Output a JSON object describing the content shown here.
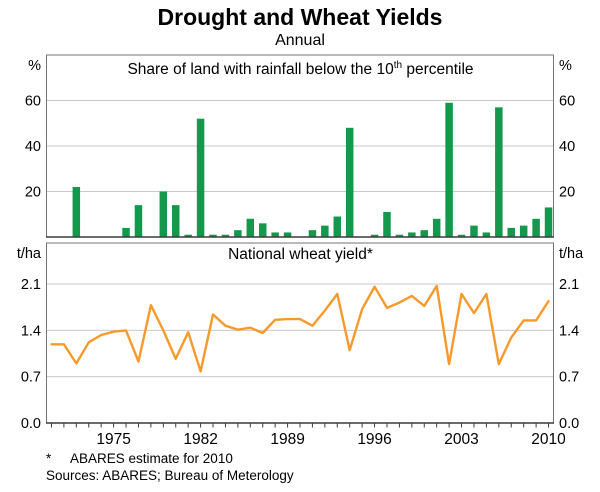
{
  "title": "Drought and Wheat Yields",
  "subtitle": "Annual",
  "footnote": {
    "marker": "*",
    "text": "ABARES estimate for 2010"
  },
  "sources": "Sources: ABARES; Bureau of Meterology",
  "colors": {
    "bar": "#14994C",
    "line": "#F8992C",
    "grid": "#C9C9C9",
    "frame": "#757575",
    "axis": "#3C3C3C",
    "text": "#000000"
  },
  "x_axis": {
    "year_start": 1970,
    "year_end": 2010,
    "labels": [
      1975,
      1982,
      1989,
      1996,
      2003,
      2010
    ]
  },
  "chart_data": [
    {
      "type": "bar",
      "name": "share-of-land-rainfall-below-10th-percentile",
      "panel_label_parts": [
        "Share of land with rainfall below the 10",
        "th",
        " percentile"
      ],
      "unit": "%",
      "ylim": [
        0,
        80
      ],
      "yticks": [
        20,
        40,
        60
      ],
      "grid": true,
      "years": [
        1970,
        1971,
        1972,
        1973,
        1974,
        1975,
        1976,
        1977,
        1978,
        1979,
        1980,
        1981,
        1982,
        1983,
        1984,
        1985,
        1986,
        1987,
        1988,
        1989,
        1990,
        1991,
        1992,
        1993,
        1994,
        1995,
        1996,
        1997,
        1998,
        1999,
        2000,
        2001,
        2002,
        2003,
        2004,
        2005,
        2006,
        2007,
        2008,
        2009,
        2010
      ],
      "values": [
        0,
        0,
        22,
        0,
        0,
        0,
        4,
        14,
        0,
        20,
        14,
        1,
        52,
        1,
        1,
        3,
        8,
        6,
        2,
        2,
        0,
        3,
        5,
        9,
        48,
        0,
        1,
        11,
        1,
        2,
        3,
        8,
        59,
        1,
        5,
        2,
        57,
        4,
        5,
        8,
        13
      ]
    },
    {
      "type": "line",
      "name": "national-wheat-yield",
      "panel_label": "National wheat yield*",
      "unit": "t/ha",
      "ylim": [
        0,
        2.72
      ],
      "yticks": [
        0.0,
        0.7,
        1.4,
        2.1
      ],
      "grid": true,
      "years": [
        1970,
        1971,
        1972,
        1973,
        1974,
        1975,
        1976,
        1977,
        1978,
        1979,
        1980,
        1981,
        1982,
        1983,
        1984,
        1985,
        1986,
        1987,
        1988,
        1989,
        1990,
        1991,
        1992,
        1993,
        1994,
        1995,
        1996,
        1997,
        1998,
        1999,
        2000,
        2001,
        2002,
        2003,
        2004,
        2005,
        2006,
        2007,
        2008,
        2009,
        2010
      ],
      "values": [
        1.19,
        1.19,
        0.9,
        1.22,
        1.33,
        1.38,
        1.4,
        0.93,
        1.78,
        1.4,
        0.97,
        1.37,
        0.78,
        1.64,
        1.47,
        1.41,
        1.44,
        1.36,
        1.56,
        1.57,
        1.57,
        1.47,
        1.7,
        1.95,
        1.1,
        1.72,
        2.06,
        1.74,
        1.82,
        1.92,
        1.77,
        2.07,
        0.89,
        1.95,
        1.66,
        1.95,
        0.89,
        1.29,
        1.55,
        1.55,
        1.84
      ]
    }
  ]
}
